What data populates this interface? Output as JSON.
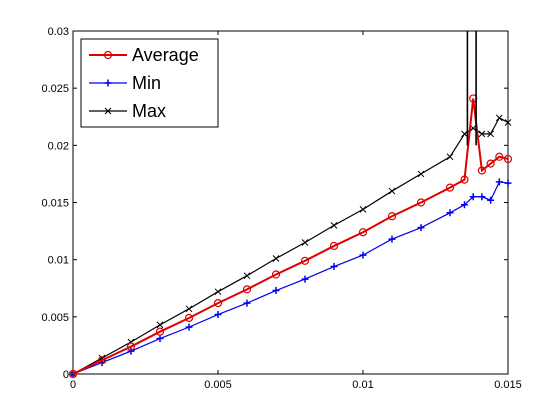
{
  "chart_data": {
    "type": "line",
    "title": "",
    "xlabel": "",
    "ylabel": "",
    "xlim": [
      0,
      0.015
    ],
    "ylim": [
      0,
      0.03
    ],
    "x_ticks": [
      "0",
      "0.005",
      "0.01",
      "0.015"
    ],
    "y_ticks": [
      "0",
      "0.005",
      "0.01",
      "0.015",
      "0.02",
      "0.025",
      "0.03"
    ],
    "grid": false,
    "legend_position": "top-left",
    "x": [
      0,
      0.001,
      0.002,
      0.003,
      0.004,
      0.005,
      0.006,
      0.007,
      0.008,
      0.009,
      0.01,
      0.011,
      0.012,
      0.013,
      0.0135,
      0.0138,
      0.0141,
      0.0144,
      0.0147,
      0.015
    ],
    "series": [
      {
        "name": "Average",
        "color": "#e00000",
        "marker": "circle",
        "values": [
          0,
          0.0012,
          0.0024,
          0.0037,
          0.0049,
          0.0062,
          0.0074,
          0.0087,
          0.0099,
          0.0112,
          0.0124,
          0.0138,
          0.015,
          0.0163,
          0.017,
          0.0241,
          0.0178,
          0.0184,
          0.019,
          0.0188
        ]
      },
      {
        "name": "Min",
        "color": "#0000ee",
        "marker": "plus",
        "values": [
          0,
          0.001,
          0.002,
          0.0031,
          0.0041,
          0.0052,
          0.0062,
          0.0073,
          0.0083,
          0.0094,
          0.0104,
          0.0118,
          0.0128,
          0.0141,
          0.0148,
          0.0155,
          0.0155,
          0.0152,
          0.0168,
          0.0167
        ]
      },
      {
        "name": "Max",
        "color": "#000000",
        "marker": "x",
        "values": [
          0,
          0.0014,
          0.0028,
          0.0043,
          0.0057,
          0.0072,
          0.0086,
          0.0101,
          0.0115,
          0.013,
          0.0144,
          0.016,
          0.0175,
          0.019,
          0.021,
          0.0215,
          0.021,
          0.021,
          0.0224,
          0.022
        ]
      }
    ],
    "spikes": [
      {
        "series": "Max",
        "x": 0.0136,
        "value": 0.0305
      },
      {
        "series": "Max",
        "x": 0.0139,
        "value": 0.0305
      }
    ]
  }
}
